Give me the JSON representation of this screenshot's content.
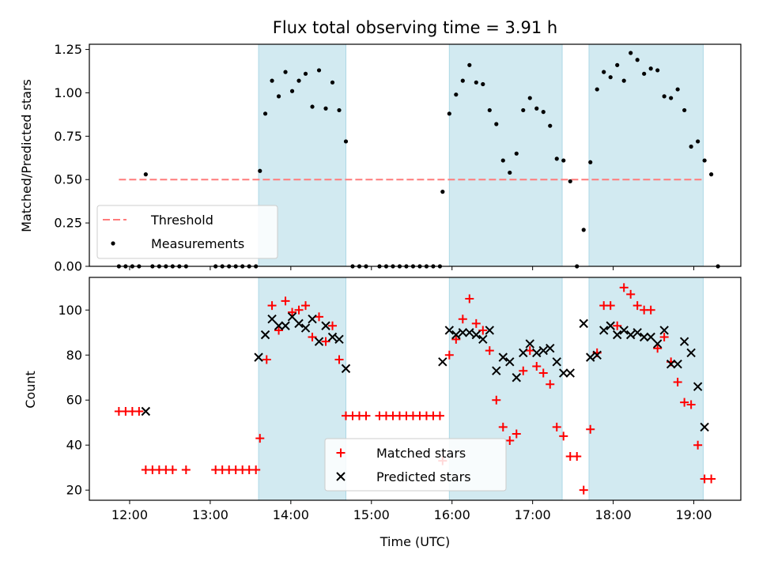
{
  "colors": {
    "observing": "#add8e6",
    "threshold": "#ff7b7b",
    "measurement": "#000000",
    "matched": "#ff0000",
    "predicted": "#000000"
  },
  "chart_data": [
    {
      "type": "scatter",
      "title": "Flux total observing time = 3.91 h",
      "xlabel": "",
      "ylabel": "Matched/Predicted stars",
      "ylim": [
        0,
        1.28
      ],
      "xlim": [
        "11:30",
        "19:35"
      ],
      "xticks": [
        "12:00",
        "13:00",
        "14:00",
        "15:00",
        "16:00",
        "17:00",
        "18:00",
        "19:00"
      ],
      "yticks": [
        "0.00",
        "0.25",
        "0.50",
        "0.75",
        "1.00",
        "1.25"
      ],
      "threshold": {
        "name": "Threshold",
        "y": 0.5,
        "x": [
          "11:52",
          "19:08"
        ]
      },
      "observing_windows": [
        [
          "13:36",
          "14:41"
        ],
        [
          "15:58",
          "17:22"
        ],
        [
          "17:42",
          "19:07"
        ]
      ],
      "legend": {
        "position": "lower-left",
        "entries": [
          "Threshold",
          "Measurements"
        ]
      },
      "series": [
        {
          "name": "Measurements",
          "points": [
            [
              "11:52",
              0
            ],
            [
              "11:57",
              0
            ],
            [
              "12:02",
              0
            ],
            [
              "12:07",
              0
            ],
            [
              "12:12",
              0.53
            ],
            [
              "12:17",
              0
            ],
            [
              "12:22",
              0
            ],
            [
              "12:27",
              0
            ],
            [
              "12:32",
              0
            ],
            [
              "12:37",
              0
            ],
            [
              "12:42",
              0
            ],
            [
              "13:04",
              0
            ],
            [
              "13:09",
              0
            ],
            [
              "13:14",
              0
            ],
            [
              "13:19",
              0
            ],
            [
              "13:24",
              0
            ],
            [
              "13:29",
              0
            ],
            [
              "13:34",
              0
            ],
            [
              "13:37",
              0.55
            ],
            [
              "13:41",
              0.88
            ],
            [
              "13:46",
              1.07
            ],
            [
              "13:51",
              0.98
            ],
            [
              "13:56",
              1.12
            ],
            [
              "14:01",
              1.01
            ],
            [
              "14:06",
              1.07
            ],
            [
              "14:11",
              1.11
            ],
            [
              "14:16",
              0.92
            ],
            [
              "14:21",
              1.13
            ],
            [
              "14:26",
              0.91
            ],
            [
              "14:31",
              1.06
            ],
            [
              "14:36",
              0.9
            ],
            [
              "14:41",
              0.72
            ],
            [
              "14:46",
              0
            ],
            [
              "14:51",
              0
            ],
            [
              "14:56",
              0
            ],
            [
              "15:06",
              0
            ],
            [
              "15:11",
              0
            ],
            [
              "15:16",
              0
            ],
            [
              "15:21",
              0
            ],
            [
              "15:26",
              0
            ],
            [
              "15:31",
              0
            ],
            [
              "15:36",
              0
            ],
            [
              "15:41",
              0
            ],
            [
              "15:46",
              0
            ],
            [
              "15:51",
              0
            ],
            [
              "15:53",
              0.43
            ],
            [
              "15:58",
              0.88
            ],
            [
              "16:03",
              0.99
            ],
            [
              "16:08",
              1.07
            ],
            [
              "16:13",
              1.16
            ],
            [
              "16:18",
              1.06
            ],
            [
              "16:23",
              1.05
            ],
            [
              "16:28",
              0.9
            ],
            [
              "16:33",
              0.82
            ],
            [
              "16:38",
              0.61
            ],
            [
              "16:43",
              0.54
            ],
            [
              "16:48",
              0.65
            ],
            [
              "16:53",
              0.9
            ],
            [
              "16:58",
              0.97
            ],
            [
              "17:03",
              0.91
            ],
            [
              "17:08",
              0.89
            ],
            [
              "17:13",
              0.81
            ],
            [
              "17:18",
              0.62
            ],
            [
              "17:23",
              0.61
            ],
            [
              "17:28",
              0.49
            ],
            [
              "17:33",
              0
            ],
            [
              "17:38",
              0.21
            ],
            [
              "17:43",
              0.6
            ],
            [
              "17:48",
              1.02
            ],
            [
              "17:53",
              1.12
            ],
            [
              "17:58",
              1.09
            ],
            [
              "18:03",
              1.16
            ],
            [
              "18:08",
              1.07
            ],
            [
              "18:13",
              1.23
            ],
            [
              "18:18",
              1.19
            ],
            [
              "18:23",
              1.11
            ],
            [
              "18:28",
              1.14
            ],
            [
              "18:33",
              1.13
            ],
            [
              "18:38",
              0.98
            ],
            [
              "18:43",
              0.97
            ],
            [
              "18:48",
              1.02
            ],
            [
              "18:53",
              0.9
            ],
            [
              "18:58",
              0.69
            ],
            [
              "19:03",
              0.72
            ],
            [
              "19:08",
              0.61
            ],
            [
              "19:13",
              0.53
            ],
            [
              "19:18",
              0
            ]
          ]
        }
      ]
    },
    {
      "type": "scatter",
      "title": "",
      "xlabel": "Time (UTC)",
      "ylabel": "Count",
      "ylim": [
        15.5,
        114.5
      ],
      "xlim": [
        "11:30",
        "19:35"
      ],
      "xticks": [
        "12:00",
        "13:00",
        "14:00",
        "15:00",
        "16:00",
        "17:00",
        "18:00",
        "19:00"
      ],
      "yticks": [
        "20",
        "40",
        "60",
        "80",
        "100"
      ],
      "observing_windows": [
        [
          "13:36",
          "14:41"
        ],
        [
          "15:58",
          "17:22"
        ],
        [
          "17:42",
          "19:07"
        ]
      ],
      "legend": {
        "position": "lower-center",
        "entries": [
          "Matched stars",
          "Predicted stars"
        ]
      },
      "series": [
        {
          "name": "Matched stars",
          "marker": "plus",
          "points": [
            [
              "11:52",
              55
            ],
            [
              "11:57",
              55
            ],
            [
              "12:02",
              55
            ],
            [
              "12:07",
              55
            ],
            [
              "12:12",
              29
            ],
            [
              "12:17",
              29
            ],
            [
              "12:22",
              29
            ],
            [
              "12:27",
              29
            ],
            [
              "12:32",
              29
            ],
            [
              "12:42",
              29
            ],
            [
              "13:04",
              29
            ],
            [
              "13:09",
              29
            ],
            [
              "13:14",
              29
            ],
            [
              "13:19",
              29
            ],
            [
              "13:24",
              29
            ],
            [
              "13:29",
              29
            ],
            [
              "13:34",
              29
            ],
            [
              "13:37",
              43
            ],
            [
              "13:42",
              78
            ],
            [
              "13:46",
              102
            ],
            [
              "13:51",
              91
            ],
            [
              "13:56",
              104
            ],
            [
              "14:01",
              99
            ],
            [
              "14:06",
              100
            ],
            [
              "14:11",
              102
            ],
            [
              "14:16",
              88
            ],
            [
              "14:21",
              97
            ],
            [
              "14:26",
              86
            ],
            [
              "14:31",
              93
            ],
            [
              "14:36",
              78
            ],
            [
              "14:41",
              53
            ],
            [
              "14:46",
              53
            ],
            [
              "14:51",
              53
            ],
            [
              "14:56",
              53
            ],
            [
              "15:06",
              53
            ],
            [
              "15:11",
              53
            ],
            [
              "15:16",
              53
            ],
            [
              "15:21",
              53
            ],
            [
              "15:26",
              53
            ],
            [
              "15:31",
              53
            ],
            [
              "15:36",
              53
            ],
            [
              "15:41",
              53
            ],
            [
              "15:46",
              53
            ],
            [
              "15:51",
              53
            ],
            [
              "15:53",
              33
            ],
            [
              "15:58",
              80
            ],
            [
              "16:03",
              87
            ],
            [
              "16:08",
              96
            ],
            [
              "16:13",
              105
            ],
            [
              "16:18",
              94
            ],
            [
              "16:23",
              91
            ],
            [
              "16:28",
              82
            ],
            [
              "16:33",
              60
            ],
            [
              "16:38",
              48
            ],
            [
              "16:43",
              42
            ],
            [
              "16:48",
              45
            ],
            [
              "16:53",
              73
            ],
            [
              "16:58",
              82
            ],
            [
              "17:03",
              75
            ],
            [
              "17:08",
              72
            ],
            [
              "17:13",
              67
            ],
            [
              "17:18",
              48
            ],
            [
              "17:23",
              44
            ],
            [
              "17:28",
              35
            ],
            [
              "17:33",
              35
            ],
            [
              "17:38",
              20
            ],
            [
              "17:43",
              47
            ],
            [
              "17:48",
              81
            ],
            [
              "17:53",
              102
            ],
            [
              "17:58",
              102
            ],
            [
              "18:03",
              93
            ],
            [
              "18:08",
              110
            ],
            [
              "18:13",
              107
            ],
            [
              "18:18",
              102
            ],
            [
              "18:23",
              100
            ],
            [
              "18:28",
              100
            ],
            [
              "18:33",
              83
            ],
            [
              "18:38",
              88
            ],
            [
              "18:43",
              77
            ],
            [
              "18:48",
              68
            ],
            [
              "18:53",
              59
            ],
            [
              "18:58",
              58
            ],
            [
              "19:03",
              40
            ],
            [
              "19:08",
              25
            ],
            [
              "19:13",
              25
            ]
          ]
        },
        {
          "name": "Predicted stars",
          "marker": "x",
          "points": [
            [
              "12:12",
              55
            ],
            [
              "13:36",
              79
            ],
            [
              "13:41",
              89
            ],
            [
              "13:46",
              96
            ],
            [
              "13:51",
              93
            ],
            [
              "13:56",
              93
            ],
            [
              "14:01",
              97
            ],
            [
              "14:06",
              94
            ],
            [
              "14:11",
              92
            ],
            [
              "14:16",
              96
            ],
            [
              "14:21",
              86
            ],
            [
              "14:26",
              93
            ],
            [
              "14:31",
              88
            ],
            [
              "14:36",
              87
            ],
            [
              "14:41",
              74
            ],
            [
              "15:53",
              77
            ],
            [
              "15:58",
              91
            ],
            [
              "16:03",
              89
            ],
            [
              "16:08",
              90
            ],
            [
              "16:13",
              90
            ],
            [
              "16:18",
              89
            ],
            [
              "16:23",
              87
            ],
            [
              "16:28",
              91
            ],
            [
              "16:33",
              73
            ],
            [
              "16:38",
              79
            ],
            [
              "16:43",
              77
            ],
            [
              "16:48",
              70
            ],
            [
              "16:53",
              81
            ],
            [
              "16:58",
              85
            ],
            [
              "17:03",
              81
            ],
            [
              "17:08",
              82
            ],
            [
              "17:13",
              83
            ],
            [
              "17:18",
              77
            ],
            [
              "17:23",
              72
            ],
            [
              "17:28",
              72
            ],
            [
              "17:38",
              94
            ],
            [
              "17:43",
              79
            ],
            [
              "17:48",
              80
            ],
            [
              "17:53",
              91
            ],
            [
              "17:58",
              93
            ],
            [
              "18:03",
              89
            ],
            [
              "18:08",
              91
            ],
            [
              "18:13",
              89
            ],
            [
              "18:18",
              90
            ],
            [
              "18:23",
              88
            ],
            [
              "18:28",
              88
            ],
            [
              "18:33",
              85
            ],
            [
              "18:38",
              91
            ],
            [
              "18:43",
              76
            ],
            [
              "18:48",
              76
            ],
            [
              "18:53",
              86
            ],
            [
              "18:58",
              81
            ],
            [
              "19:03",
              66
            ],
            [
              "19:08",
              48
            ]
          ]
        }
      ]
    }
  ]
}
